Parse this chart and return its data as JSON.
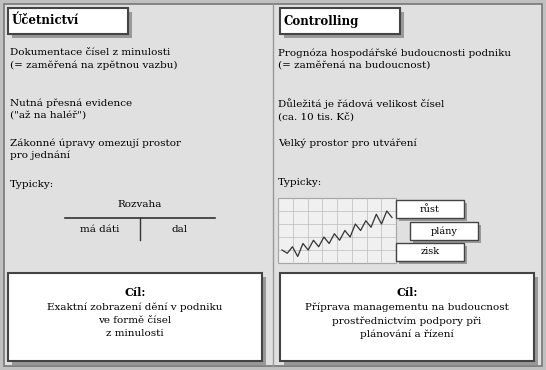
{
  "background_color": "#c0c0c0",
  "panel_bg": "#e0e0e0",
  "white": "#ffffff",
  "figsize": [
    5.46,
    3.7
  ],
  "dpi": 100,
  "left_title": "Účetnictví",
  "right_title": "Controlling",
  "left_bullet1": "Dokumentace čísel z minulosti\n(= zaměřená na zpětnou vazbu)",
  "left_bullet2": "Nutná přesná evidence\n(\"až na haléř\")",
  "left_bullet3": "Zákonné úpravy omezují prostor\npro jednání",
  "left_bullet4": "Typicky:",
  "right_bullet1": "Prognóza hospodářské budoucnosti podniku\n(= zaměřená na budoucnost)",
  "right_bullet2": "Důležitá je řádová velikost čísel\n(ca. 10 tis. Kč)",
  "right_bullet3": "Velký prostor pro utváření",
  "right_bullet4": "Typicky:",
  "left_cil_title": "Cíl:",
  "left_cil_text": "Exaktní zobrazení dění v podniku\nve formě čísel\nz minulosti",
  "right_cil_title": "Cíl:",
  "right_cil_text": "Příprava managementu na budoucnost\nprostřednictvím podpory při\nplánování a řízení",
  "rozvaha_label": "Rozvaha",
  "madati_label": "má dáti",
  "dal_label": "dal",
  "rust_label": "růst",
  "plany_label": "plány",
  "zisk_label": "zisk",
  "font_size_title": 8.5,
  "font_size_body": 7.5,
  "font_size_cil_title": 8,
  "font_size_cil_body": 7.5,
  "shadow_color": "#999999"
}
